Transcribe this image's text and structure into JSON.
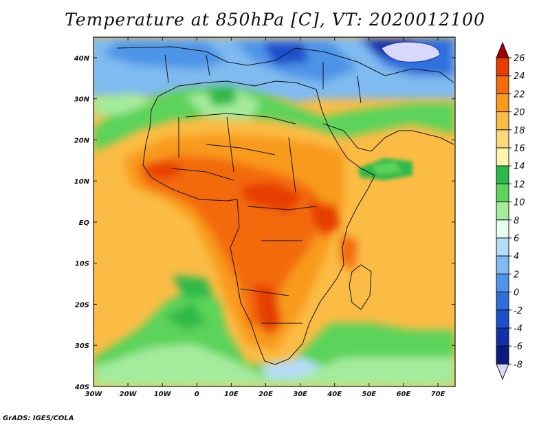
{
  "title": "Temperature at 850hPa [C], VT: 2020012100",
  "credit": "GrADS: IGES/COLA",
  "map": {
    "lon_range": [
      -30,
      75
    ],
    "lat_range": [
      -40,
      45
    ],
    "x_ticks": [
      "30W",
      "20W",
      "10W",
      "0",
      "10E",
      "20E",
      "30E",
      "40E",
      "50E",
      "60E",
      "70E"
    ],
    "y_ticks": [
      "40N",
      "30N",
      "20N",
      "10N",
      "EQ",
      "10S",
      "20S",
      "30S",
      "40S"
    ]
  },
  "colorbar": {
    "labels": [
      "26",
      "24",
      "22",
      "20",
      "18",
      "16",
      "14",
      "12",
      "10",
      "8",
      "6",
      "4",
      "2",
      "0",
      "-2",
      "-4",
      "-6",
      "-8"
    ],
    "colors": [
      "#a50000",
      "#e63c00",
      "#f36b0a",
      "#f89a1d",
      "#fbbc45",
      "#fcd77c",
      "#fff3b0",
      "#2db94a",
      "#5cd35a",
      "#a4eb9c",
      "#e6fff0",
      "#b6dcf8",
      "#7fbaf0",
      "#4e94e8",
      "#2f6fdd",
      "#1c4fcb",
      "#1230a8",
      "#0b1a7d",
      "#d9d9ff"
    ]
  }
}
